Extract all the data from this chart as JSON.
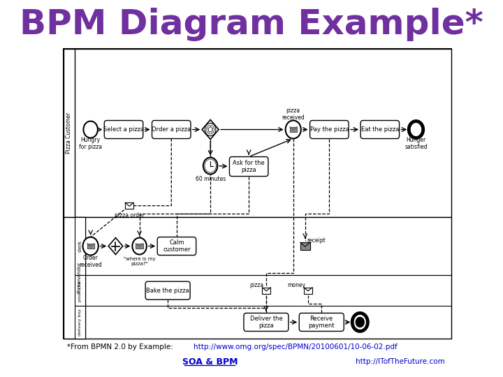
{
  "title": "BPM Diagram Example*",
  "title_color": "#7030A0",
  "title_fontsize": 36,
  "bg_color": "#FFFFFF",
  "footnote_prefix": "*From BPMN 2.0 by Example:  ",
  "footnote_link": "http://www.omg.org/spec/BPMN/20100601/10-06-02.pdf",
  "footer_left": "SOA & BPM",
  "footer_right": "http://ITofTheFuture.com"
}
